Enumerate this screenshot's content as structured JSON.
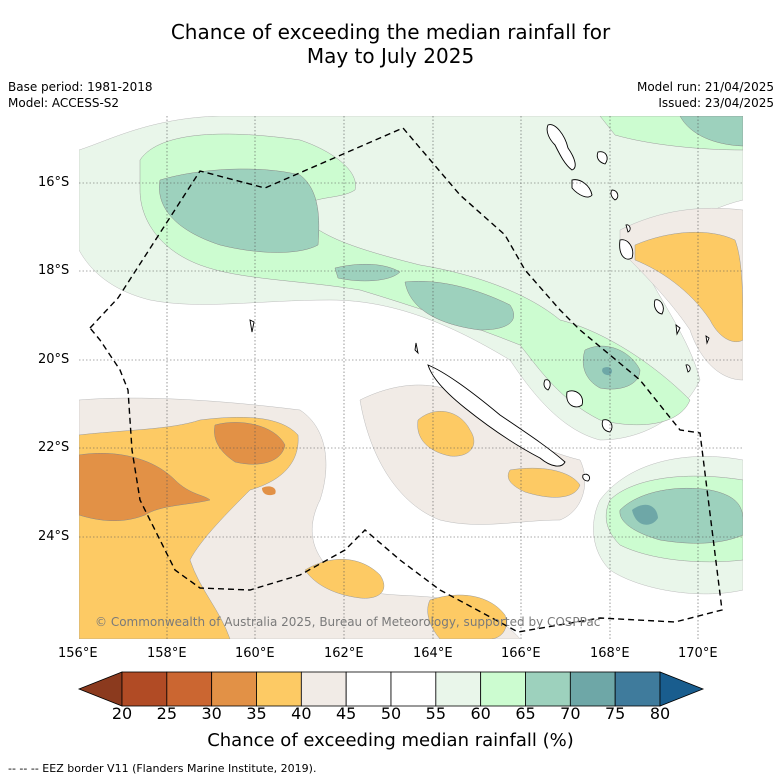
{
  "title_line1": "Chance of exceeding the median rainfall for",
  "title_line2": "May to July 2025",
  "base_period": "Base period: 1981-2018",
  "model": "Model: ACCESS-S2",
  "model_run": "Model run: 21/04/2025",
  "issued": "Issued: 23/04/2025",
  "copyright": "© Commonwealth of Australia 2025, Bureau of Meteorology, supported by COSPPac",
  "lat_labels": [
    "16°S",
    "18°S",
    "20°S",
    "22°S",
    "24°S"
  ],
  "lon_labels": [
    "156°E",
    "158°E",
    "160°E",
    "162°E",
    "164°E",
    "166°E",
    "168°E",
    "170°E"
  ],
  "colorbar": {
    "ticks": [
      "20",
      "25",
      "30",
      "35",
      "40",
      "45",
      "50",
      "55",
      "60",
      "65",
      "70",
      "75",
      "80"
    ],
    "colors": [
      "#8b3a1e",
      "#b14b25",
      "#cb6631",
      "#e29146",
      "#fdca64",
      "#f1ebe6",
      "#ffffff",
      "#ffffff",
      "#e9f6ea",
      "#ccfcd0",
      "#9dd1bd",
      "#6ea7a7",
      "#3f7b9c",
      "#195d8e"
    ],
    "title": "Chance of exceeding median rainfall (%)"
  },
  "footnote": "--  --  -- EEZ border V11 (Flanders Marine Institute, 2019)."
}
